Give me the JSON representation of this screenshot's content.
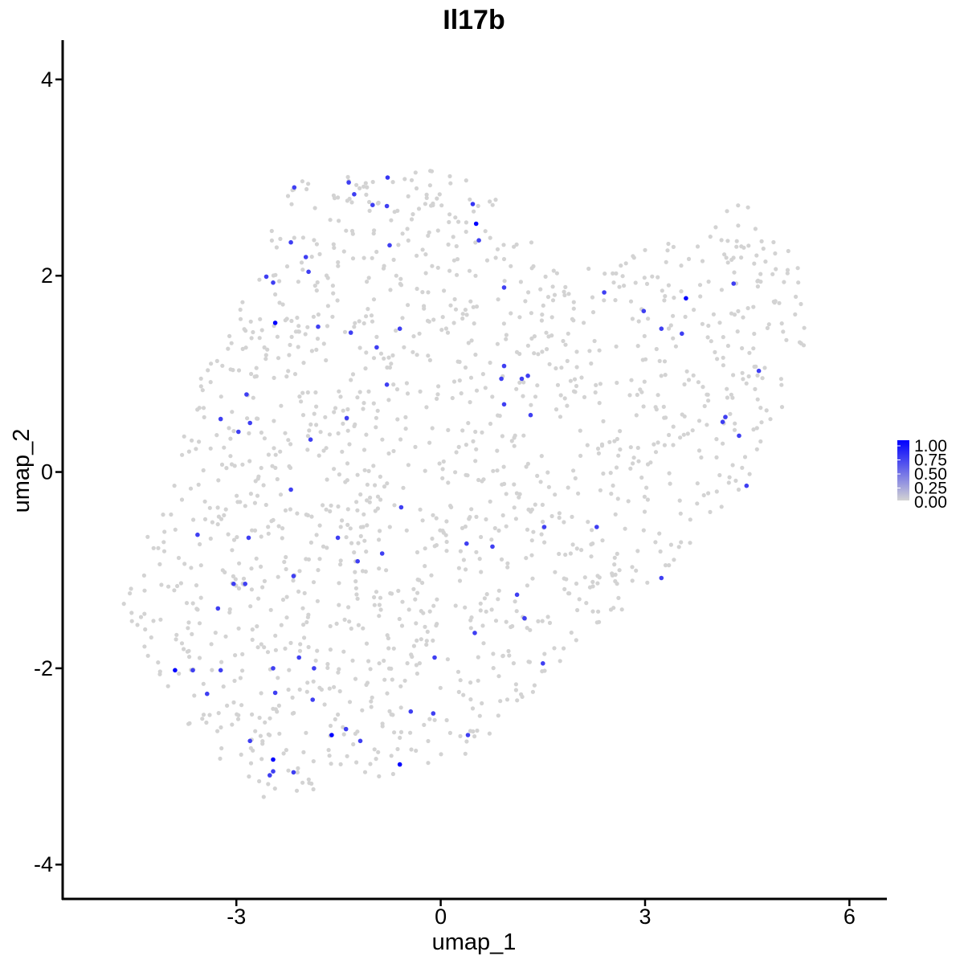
{
  "chart_data": {
    "type": "scatter",
    "title": "Il17b",
    "xlabel": "umap_1",
    "ylabel": "umap_2",
    "xlim": [
      -5.55,
      6.55
    ],
    "ylim": [
      -4.35,
      4.4
    ],
    "x_ticks": [
      -3,
      0,
      3,
      6
    ],
    "y_ticks": [
      -4,
      -2,
      0,
      2,
      4
    ],
    "grid": false,
    "legend": {
      "position": "right",
      "type": "colorbar",
      "low_color": "#d3d3d3",
      "high_color": "#0000ff",
      "range": [
        0,
        1
      ],
      "labels": [
        "1.00",
        "0.75",
        "0.50",
        "0.25",
        "0.00"
      ]
    },
    "background_point_color": "#d3d3d3",
    "background_cell_count": 1500,
    "expressing_points": [
      {
        "x": -2.15,
        "y": 2.9,
        "value": 0.7
      },
      {
        "x": -1.35,
        "y": 2.95,
        "value": 0.7
      },
      {
        "x": -1.27,
        "y": 2.83,
        "value": 0.7
      },
      {
        "x": -0.78,
        "y": 3.0,
        "value": 0.75
      },
      {
        "x": -1.0,
        "y": 2.72,
        "value": 0.7
      },
      {
        "x": -0.79,
        "y": 2.71,
        "value": 0.7
      },
      {
        "x": 0.47,
        "y": 2.73,
        "value": 0.75
      },
      {
        "x": 0.52,
        "y": 2.53,
        "value": 1.0
      },
      {
        "x": 0.56,
        "y": 2.36,
        "value": 0.7
      },
      {
        "x": -2.2,
        "y": 2.34,
        "value": 0.7
      },
      {
        "x": -0.75,
        "y": 2.31,
        "value": 0.7
      },
      {
        "x": -1.98,
        "y": 2.19,
        "value": 0.7
      },
      {
        "x": -1.94,
        "y": 2.04,
        "value": 0.7
      },
      {
        "x": -2.56,
        "y": 1.99,
        "value": 0.7
      },
      {
        "x": -2.46,
        "y": 1.93,
        "value": 0.7
      },
      {
        "x": 0.93,
        "y": 1.88,
        "value": 0.7
      },
      {
        "x": 2.4,
        "y": 1.83,
        "value": 0.7
      },
      {
        "x": 4.3,
        "y": 1.92,
        "value": 0.7
      },
      {
        "x": 3.6,
        "y": 1.77,
        "value": 1.0
      },
      {
        "x": 2.98,
        "y": 1.64,
        "value": 0.7
      },
      {
        "x": -2.43,
        "y": 1.52,
        "value": 1.0
      },
      {
        "x": -1.8,
        "y": 1.48,
        "value": 0.7
      },
      {
        "x": -0.6,
        "y": 1.46,
        "value": 0.7
      },
      {
        "x": -1.32,
        "y": 1.42,
        "value": 0.7
      },
      {
        "x": 3.24,
        "y": 1.46,
        "value": 0.7
      },
      {
        "x": 3.54,
        "y": 1.41,
        "value": 0.7
      },
      {
        "x": -0.94,
        "y": 1.27,
        "value": 0.7
      },
      {
        "x": 0.93,
        "y": 1.08,
        "value": 0.7
      },
      {
        "x": 4.67,
        "y": 1.03,
        "value": 0.7
      },
      {
        "x": 1.28,
        "y": 0.98,
        "value": 0.7
      },
      {
        "x": 0.89,
        "y": 0.95,
        "value": 0.7
      },
      {
        "x": 1.19,
        "y": 0.95,
        "value": 0.7
      },
      {
        "x": -0.79,
        "y": 0.89,
        "value": 0.7
      },
      {
        "x": -2.85,
        "y": 0.79,
        "value": 0.7
      },
      {
        "x": 0.93,
        "y": 0.69,
        "value": 0.7
      },
      {
        "x": 1.32,
        "y": 0.58,
        "value": 0.7
      },
      {
        "x": -3.23,
        "y": 0.54,
        "value": 0.7
      },
      {
        "x": -1.38,
        "y": 0.55,
        "value": 0.7
      },
      {
        "x": 4.18,
        "y": 0.56,
        "value": 0.7
      },
      {
        "x": 4.14,
        "y": 0.51,
        "value": 0.7
      },
      {
        "x": -2.8,
        "y": 0.5,
        "value": 0.7
      },
      {
        "x": -2.97,
        "y": 0.41,
        "value": 0.7
      },
      {
        "x": 4.38,
        "y": 0.37,
        "value": 0.7
      },
      {
        "x": -1.91,
        "y": 0.33,
        "value": 0.7
      },
      {
        "x": 4.49,
        "y": -0.14,
        "value": 0.7
      },
      {
        "x": -2.2,
        "y": -0.18,
        "value": 0.7
      },
      {
        "x": -0.58,
        "y": -0.36,
        "value": 0.7
      },
      {
        "x": 1.52,
        "y": -0.56,
        "value": 0.7
      },
      {
        "x": 2.29,
        "y": -0.56,
        "value": 0.7
      },
      {
        "x": -3.57,
        "y": -0.64,
        "value": 0.7
      },
      {
        "x": -2.82,
        "y": -0.67,
        "value": 0.7
      },
      {
        "x": -1.51,
        "y": -0.67,
        "value": 0.7
      },
      {
        "x": 0.38,
        "y": -0.73,
        "value": 0.7
      },
      {
        "x": 0.76,
        "y": -0.76,
        "value": 0.7
      },
      {
        "x": -0.86,
        "y": -0.83,
        "value": 0.7
      },
      {
        "x": -1.22,
        "y": -0.91,
        "value": 0.7
      },
      {
        "x": -2.16,
        "y": -1.06,
        "value": 0.7
      },
      {
        "x": 3.24,
        "y": -1.08,
        "value": 0.7
      },
      {
        "x": -3.04,
        "y": -1.14,
        "value": 0.7
      },
      {
        "x": -2.87,
        "y": -1.14,
        "value": 0.7
      },
      {
        "x": 1.12,
        "y": -1.25,
        "value": 0.7
      },
      {
        "x": -3.27,
        "y": -1.39,
        "value": 0.7
      },
      {
        "x": 1.23,
        "y": -1.49,
        "value": 0.7
      },
      {
        "x": 0.5,
        "y": -1.64,
        "value": 0.7
      },
      {
        "x": -2.08,
        "y": -1.89,
        "value": 0.7
      },
      {
        "x": -0.09,
        "y": -1.89,
        "value": 0.7
      },
      {
        "x": 1.5,
        "y": -1.95,
        "value": 0.7
      },
      {
        "x": -3.9,
        "y": -2.02,
        "value": 1.0
      },
      {
        "x": -3.64,
        "y": -2.02,
        "value": 0.7
      },
      {
        "x": -3.23,
        "y": -2.02,
        "value": 0.7
      },
      {
        "x": -2.46,
        "y": -2.0,
        "value": 0.7
      },
      {
        "x": -1.86,
        "y": -2.0,
        "value": 0.7
      },
      {
        "x": -3.43,
        "y": -2.26,
        "value": 0.7
      },
      {
        "x": -2.43,
        "y": -2.25,
        "value": 0.7
      },
      {
        "x": -1.88,
        "y": -2.32,
        "value": 0.7
      },
      {
        "x": -0.44,
        "y": -2.44,
        "value": 0.7
      },
      {
        "x": -0.11,
        "y": -2.46,
        "value": 0.7
      },
      {
        "x": -1.39,
        "y": -2.62,
        "value": 0.7
      },
      {
        "x": -1.6,
        "y": -2.68,
        "value": 1.0
      },
      {
        "x": 0.4,
        "y": -2.68,
        "value": 0.7
      },
      {
        "x": -1.18,
        "y": -2.74,
        "value": 0.7
      },
      {
        "x": -2.8,
        "y": -2.74,
        "value": 0.7
      },
      {
        "x": -2.46,
        "y": -2.93,
        "value": 1.0
      },
      {
        "x": -0.6,
        "y": -2.98,
        "value": 1.0
      },
      {
        "x": -2.46,
        "y": -3.05,
        "value": 0.7
      },
      {
        "x": -2.51,
        "y": -3.09,
        "value": 0.7
      },
      {
        "x": -2.16,
        "y": -3.06,
        "value": 0.7
      }
    ]
  }
}
